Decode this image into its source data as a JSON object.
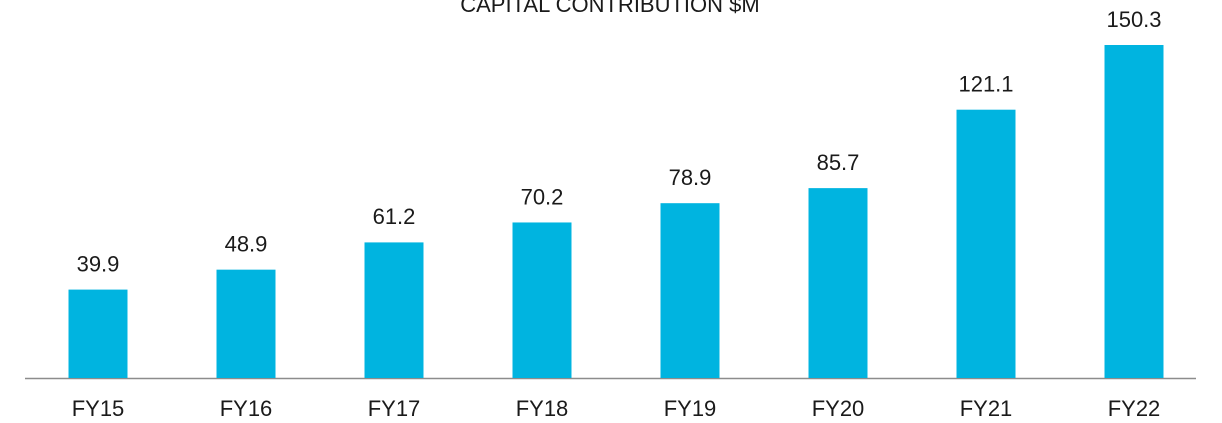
{
  "chart_data": {
    "type": "bar",
    "title": "CAPITAL CONTRIBUTION $M",
    "categories": [
      "FY15",
      "FY16",
      "FY17",
      "FY18",
      "FY19",
      "FY20",
      "FY21",
      "FY22"
    ],
    "values": [
      39.9,
      48.9,
      61.2,
      70.2,
      78.9,
      85.7,
      121.1,
      150.3
    ],
    "color": "#00b4e0"
  }
}
